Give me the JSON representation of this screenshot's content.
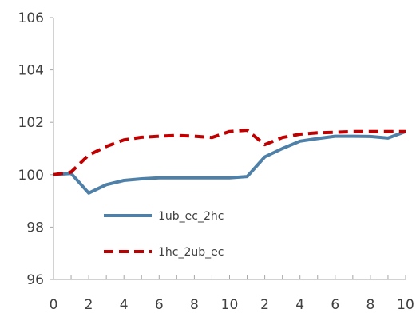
{
  "chart_data": {
    "type": "line",
    "title": "",
    "xlabel": "",
    "ylabel": "",
    "x_tick_labels": [
      "0",
      "2",
      "4",
      "6",
      "8",
      "10",
      "2",
      "4",
      "6",
      "8",
      "10"
    ],
    "y_tick_labels": [
      "96",
      "98",
      "100",
      "102",
      "104",
      "106"
    ],
    "ylim": [
      96,
      106
    ],
    "grid": false,
    "legend_position": "center-left",
    "series": [
      {
        "name": "1ub_ec_2hc",
        "color": "#4F81A8",
        "style": "solid",
        "values": [
          100.0,
          100.05,
          99.3,
          99.62,
          99.78,
          99.84,
          99.88,
          99.88,
          99.88,
          99.88,
          99.88,
          99.93,
          100.68,
          101.0,
          101.28,
          101.38,
          101.47,
          101.47,
          101.46,
          101.4,
          101.65
        ]
      },
      {
        "name": "1hc_2ub_ec",
        "color": "#C00000",
        "style": "dashed",
        "values": [
          100.0,
          100.1,
          100.75,
          101.08,
          101.33,
          101.43,
          101.47,
          101.5,
          101.47,
          101.42,
          101.65,
          101.7,
          101.15,
          101.42,
          101.55,
          101.6,
          101.62,
          101.65,
          101.65,
          101.65,
          101.65
        ]
      }
    ]
  }
}
